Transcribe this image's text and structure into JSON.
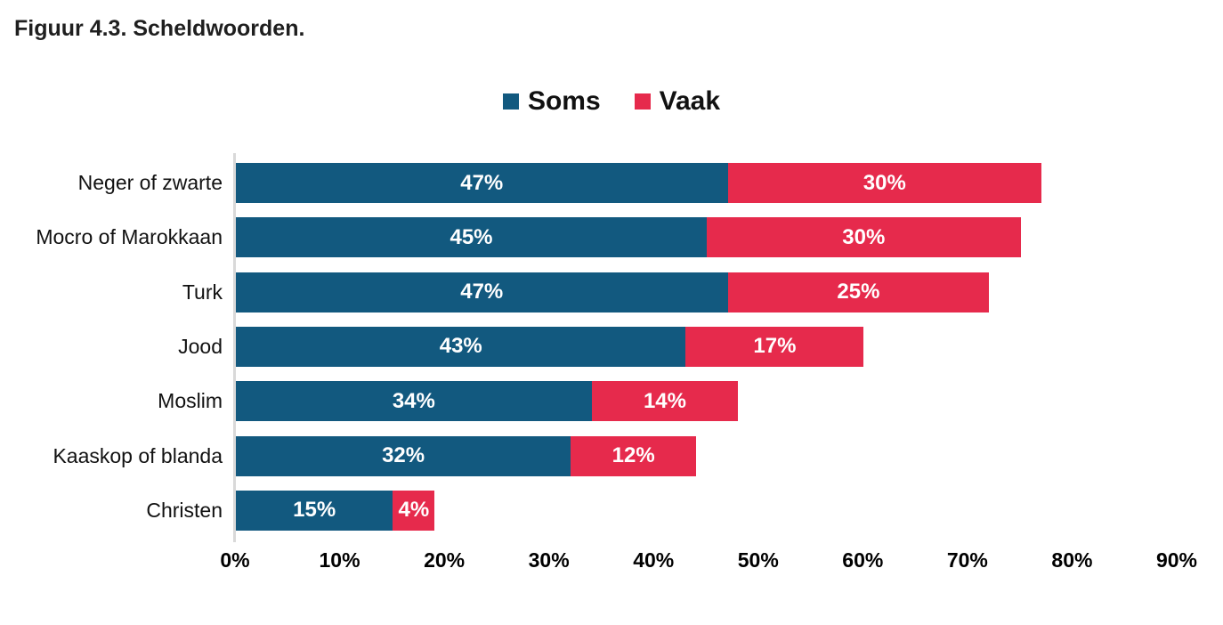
{
  "figure": {
    "title": "Figuur 4.3. Scheldwoorden."
  },
  "legend": [
    {
      "label": "Soms",
      "color": "#12597F"
    },
    {
      "label": "Vaak",
      "color": "#E62A4C"
    }
  ],
  "chart_data": {
    "type": "bar",
    "orientation": "horizontal",
    "stacked": true,
    "title": "Figuur 4.3. Scheldwoorden.",
    "categories": [
      "Neger of zwarte",
      "Mocro of Marokkaan",
      "Turk",
      "Jood",
      "Moslim",
      "Kaaskop of blanda",
      "Christen"
    ],
    "series": [
      {
        "name": "Soms",
        "color": "#12597F",
        "values": [
          47,
          45,
          47,
          43,
          34,
          32,
          15
        ]
      },
      {
        "name": "Vaak",
        "color": "#E62A4C",
        "values": [
          30,
          30,
          25,
          17,
          14,
          12,
          4
        ]
      }
    ],
    "value_suffix": "%",
    "xlim": [
      0,
      90
    ],
    "x_ticks": [
      "0%",
      "10%",
      "20%",
      "30%",
      "40%",
      "50%",
      "60%",
      "70%",
      "80%",
      "90%"
    ],
    "legend_position": "top-center",
    "grid": false,
    "axis_line_color": "#d9d9d9",
    "label_color": "#ffffff"
  }
}
